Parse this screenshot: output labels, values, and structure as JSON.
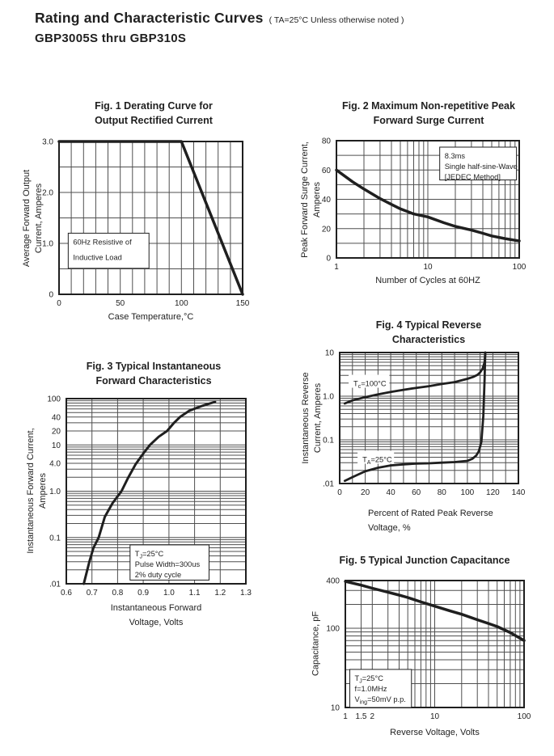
{
  "header": {
    "title": "Rating and Characteristic Curves",
    "title_note": "( TA=25°C Unless otherwise noted )",
    "subtitle": "GBP3005S  thru  GBP310S"
  },
  "ink_color": "#1f1f1f",
  "grid_color": "#4f4f4f",
  "chart_data": [
    {
      "id": "fig1",
      "type": "line",
      "title_lines": [
        "Fig. 1 Derating Curve for",
        "Output Rectified Current"
      ],
      "xlabel_lines": [
        "Case Temperature,°C"
      ],
      "ylabel_lines": [
        "Average Forward Output",
        "Current, Amperes"
      ],
      "x_axis": {
        "scale": "linear",
        "min": 0,
        "max": 150,
        "grid_step": 10,
        "ticks": [
          0,
          50,
          100,
          150
        ],
        "tick_labels": [
          "0",
          "50",
          "100",
          "150"
        ]
      },
      "y_axis": {
        "scale": "linear",
        "min": 0,
        "max": 3,
        "grid_step": 0.5,
        "ticks": [
          3,
          2,
          1,
          0
        ],
        "tick_labels": [
          "3.0",
          "2.0",
          "1.0",
          "0"
        ]
      },
      "series": [
        {
          "name": "output-current-derating",
          "stroke_width": 3.5,
          "points": [
            [
              0,
              3
            ],
            [
              100,
              3
            ],
            [
              150,
              0
            ]
          ]
        }
      ],
      "annotations": [
        {
          "lines": [
            "60Hz Resistive of",
            "Inductive Load"
          ],
          "fx": 0.05,
          "fy": 0.6,
          "fw": 0.44,
          "fh": 0.23,
          "line_h": 19,
          "border": true
        }
      ]
    },
    {
      "id": "fig2",
      "type": "line",
      "title_lines": [
        "Fig. 2 Maximum Non-repetitive Peak",
        "Forward Surge Current"
      ],
      "xlabel_lines": [
        "Number of Cycles at 60HZ"
      ],
      "ylabel_lines": [
        "Peak Forward Surge Current,",
        "Amperes"
      ],
      "x_axis": {
        "scale": "log",
        "min": 1,
        "max": 100,
        "ticks": [
          1,
          10,
          100
        ],
        "tick_labels": [
          "1",
          "10",
          "100"
        ]
      },
      "y_axis": {
        "scale": "linear",
        "min": 0,
        "max": 80,
        "grid_step": 10,
        "ticks": [
          80,
          60,
          40,
          20,
          0
        ],
        "tick_labels": [
          "80",
          "60",
          "40",
          "20",
          "0"
        ]
      },
      "series": [
        {
          "name": "surge-current",
          "stroke_width": 3.5,
          "points": [
            [
              1,
              60
            ],
            [
              1.5,
              52
            ],
            [
              2,
              47
            ],
            [
              3,
              40.5
            ],
            [
              4,
              36.5
            ],
            [
              5,
              33.5
            ],
            [
              7,
              30
            ],
            [
              10,
              28
            ],
            [
              15,
              24
            ],
            [
              20,
              21.5
            ],
            [
              30,
              19
            ],
            [
              40,
              16.8
            ],
            [
              50,
              15
            ],
            [
              70,
              13.2
            ],
            [
              100,
              11.6
            ]
          ]
        }
      ],
      "annotations": [
        {
          "lines": [
            "8.3ms",
            "Single half-sine-Wave",
            "[JEDEC Method]"
          ],
          "fx": 0.565,
          "fy": 0.055,
          "fw": 0.42,
          "fh": 0.28,
          "border": true
        }
      ]
    },
    {
      "id": "fig3",
      "type": "line",
      "title_lines": [
        "Fig. 3 Typical Instantaneous",
        "Forward Characteristics"
      ],
      "xlabel_lines": [
        "Instantaneous Forward",
        "Voltage, Volts"
      ],
      "ylabel_lines": [
        "Instantaneous Forward Current,",
        "Amperes"
      ],
      "x_axis": {
        "scale": "linear",
        "min": 0.6,
        "max": 1.3,
        "grid_step": 0.1,
        "ticks": [
          0.6,
          0.7,
          0.8,
          0.9,
          1.0,
          1.1,
          1.2,
          1.3
        ],
        "tick_labels": [
          "0.6",
          "0.7",
          "0.8",
          "0.9",
          "1.0",
          "1.1",
          "1.2",
          "1.3"
        ]
      },
      "y_axis": {
        "scale": "log",
        "min": 0.01,
        "max": 100,
        "ticks": [
          100,
          40,
          20,
          10,
          4,
          1,
          0.1,
          0.01
        ],
        "tick_labels": [
          "100",
          "40",
          "20",
          "10",
          "4.0",
          "1.0",
          "0.1",
          ".01"
        ]
      },
      "series": [
        {
          "name": "forward-voltage-current",
          "stroke_width": 3,
          "points": [
            [
              0.668,
              0.01
            ],
            [
              0.69,
              0.03
            ],
            [
              0.706,
              0.06
            ],
            [
              0.726,
              0.1
            ],
            [
              0.75,
              0.28
            ],
            [
              0.78,
              0.55
            ],
            [
              0.815,
              1.0
            ],
            [
              0.84,
              1.9
            ],
            [
              0.87,
              3.8
            ],
            [
              0.9,
              6.5
            ],
            [
              0.926,
              10
            ],
            [
              0.96,
              15
            ],
            [
              0.993,
              20
            ],
            [
              1.02,
              30
            ],
            [
              1.043,
              40
            ],
            [
              1.08,
              55
            ],
            [
              1.13,
              70
            ],
            [
              1.18,
              85
            ]
          ]
        }
      ],
      "annotations": [
        {
          "lines": [
            "T~J~=25°C",
            "Pulse Width=300us",
            "2% duty cycle"
          ],
          "fx": 0.355,
          "fy": 0.79,
          "fw": 0.44,
          "fh": 0.19,
          "border": true
        }
      ]
    },
    {
      "id": "fig4",
      "type": "line",
      "title_lines": [
        "Fig. 4 Typical Reverse",
        "Characteristics"
      ],
      "xlabel_lines": [
        "Percent of Rated Peak Reverse",
        "Voltage, %"
      ],
      "ylabel_lines": [
        "Instantaneous Reverse",
        "Current, Amperes"
      ],
      "x_axis": {
        "scale": "linear",
        "min": 0,
        "max": 140,
        "grid_step": 10,
        "ticks": [
          0,
          20,
          40,
          60,
          80,
          100,
          120,
          140
        ],
        "tick_labels": [
          "0",
          "20",
          "40",
          "60",
          "80",
          "100",
          "120",
          "140"
        ]
      },
      "y_axis": {
        "scale": "log",
        "min": 0.01,
        "max": 10,
        "ticks": [
          10,
          1,
          0.1,
          0.01
        ],
        "tick_labels": [
          "10",
          "1.0",
          "0.1",
          ".01"
        ]
      },
      "series": [
        {
          "name": "Tc=100C",
          "stroke_width": 2.8,
          "points": [
            [
              4,
              0.68
            ],
            [
              10,
              0.8
            ],
            [
              20,
              0.95
            ],
            [
              30,
              1.1
            ],
            [
              40,
              1.25
            ],
            [
              50,
              1.4
            ],
            [
              60,
              1.55
            ],
            [
              70,
              1.7
            ],
            [
              80,
              1.9
            ],
            [
              90,
              2.1
            ],
            [
              100,
              2.5
            ],
            [
              105,
              2.8
            ],
            [
              108,
              3.1
            ],
            [
              110,
              3.5
            ],
            [
              112,
              4.3
            ],
            [
              113.5,
              6
            ],
            [
              114,
              10
            ]
          ]
        },
        {
          "name": "TA=25C",
          "stroke_width": 2.8,
          "points": [
            [
              4,
              0.0115
            ],
            [
              10,
              0.014
            ],
            [
              20,
              0.019
            ],
            [
              30,
              0.023
            ],
            [
              40,
              0.026
            ],
            [
              50,
              0.0275
            ],
            [
              60,
              0.0285
            ],
            [
              70,
              0.029
            ],
            [
              80,
              0.03
            ],
            [
              90,
              0.031
            ],
            [
              100,
              0.033
            ],
            [
              104,
              0.037
            ],
            [
              107,
              0.044
            ],
            [
              109,
              0.055
            ],
            [
              111,
              0.09
            ],
            [
              112.5,
              0.35
            ],
            [
              113.5,
              2.5
            ],
            [
              114,
              10
            ]
          ]
        }
      ],
      "annotations": [
        {
          "lines": [
            "T~c~=100°C"
          ],
          "fx": 0.05,
          "fy": 0.17,
          "border": false
        },
        {
          "lines": [
            "T~A~=25°C"
          ],
          "fx": 0.1,
          "fy": 0.75,
          "border": false
        }
      ]
    },
    {
      "id": "fig5",
      "type": "line",
      "title_lines": [
        "Fig. 5 Typical Junction Capacitance"
      ],
      "xlabel_lines": [
        "Reverse Voltage, Volts"
      ],
      "ylabel_lines": [
        "Capacitance, pF"
      ],
      "x_axis": {
        "scale": "log",
        "min": 1,
        "max": 100,
        "extra_grid": [
          1.5
        ],
        "ticks": [
          1,
          1.5,
          2,
          10,
          100
        ],
        "tick_labels": [
          "1",
          "1.5",
          "2",
          "10",
          "100"
        ]
      },
      "y_axis": {
        "scale": "log",
        "min": 10,
        "max": 400,
        "ticks": [
          400,
          100,
          10
        ],
        "tick_labels": [
          "400",
          "100",
          "10"
        ]
      },
      "series": [
        {
          "name": "junction-capacitance",
          "stroke_width": 3.5,
          "points": [
            [
              1,
              390
            ],
            [
              1.5,
              350
            ],
            [
              2,
              320
            ],
            [
              3,
              285
            ],
            [
              4,
              262
            ],
            [
              5,
              244
            ],
            [
              7,
              215
            ],
            [
              10,
              190
            ],
            [
              15,
              165
            ],
            [
              20,
              150
            ],
            [
              30,
              128
            ],
            [
              40,
              115
            ],
            [
              50,
              105
            ],
            [
              70,
              88
            ],
            [
              100,
              70
            ]
          ]
        }
      ],
      "annotations": [
        {
          "lines": [
            "T~J~=25°C",
            "f=1.0MHz",
            "V~ing~=50mV p.p."
          ],
          "fx": 0.025,
          "fy": 0.7,
          "fw": 0.345,
          "fh": 0.3,
          "border": true
        }
      ]
    }
  ]
}
